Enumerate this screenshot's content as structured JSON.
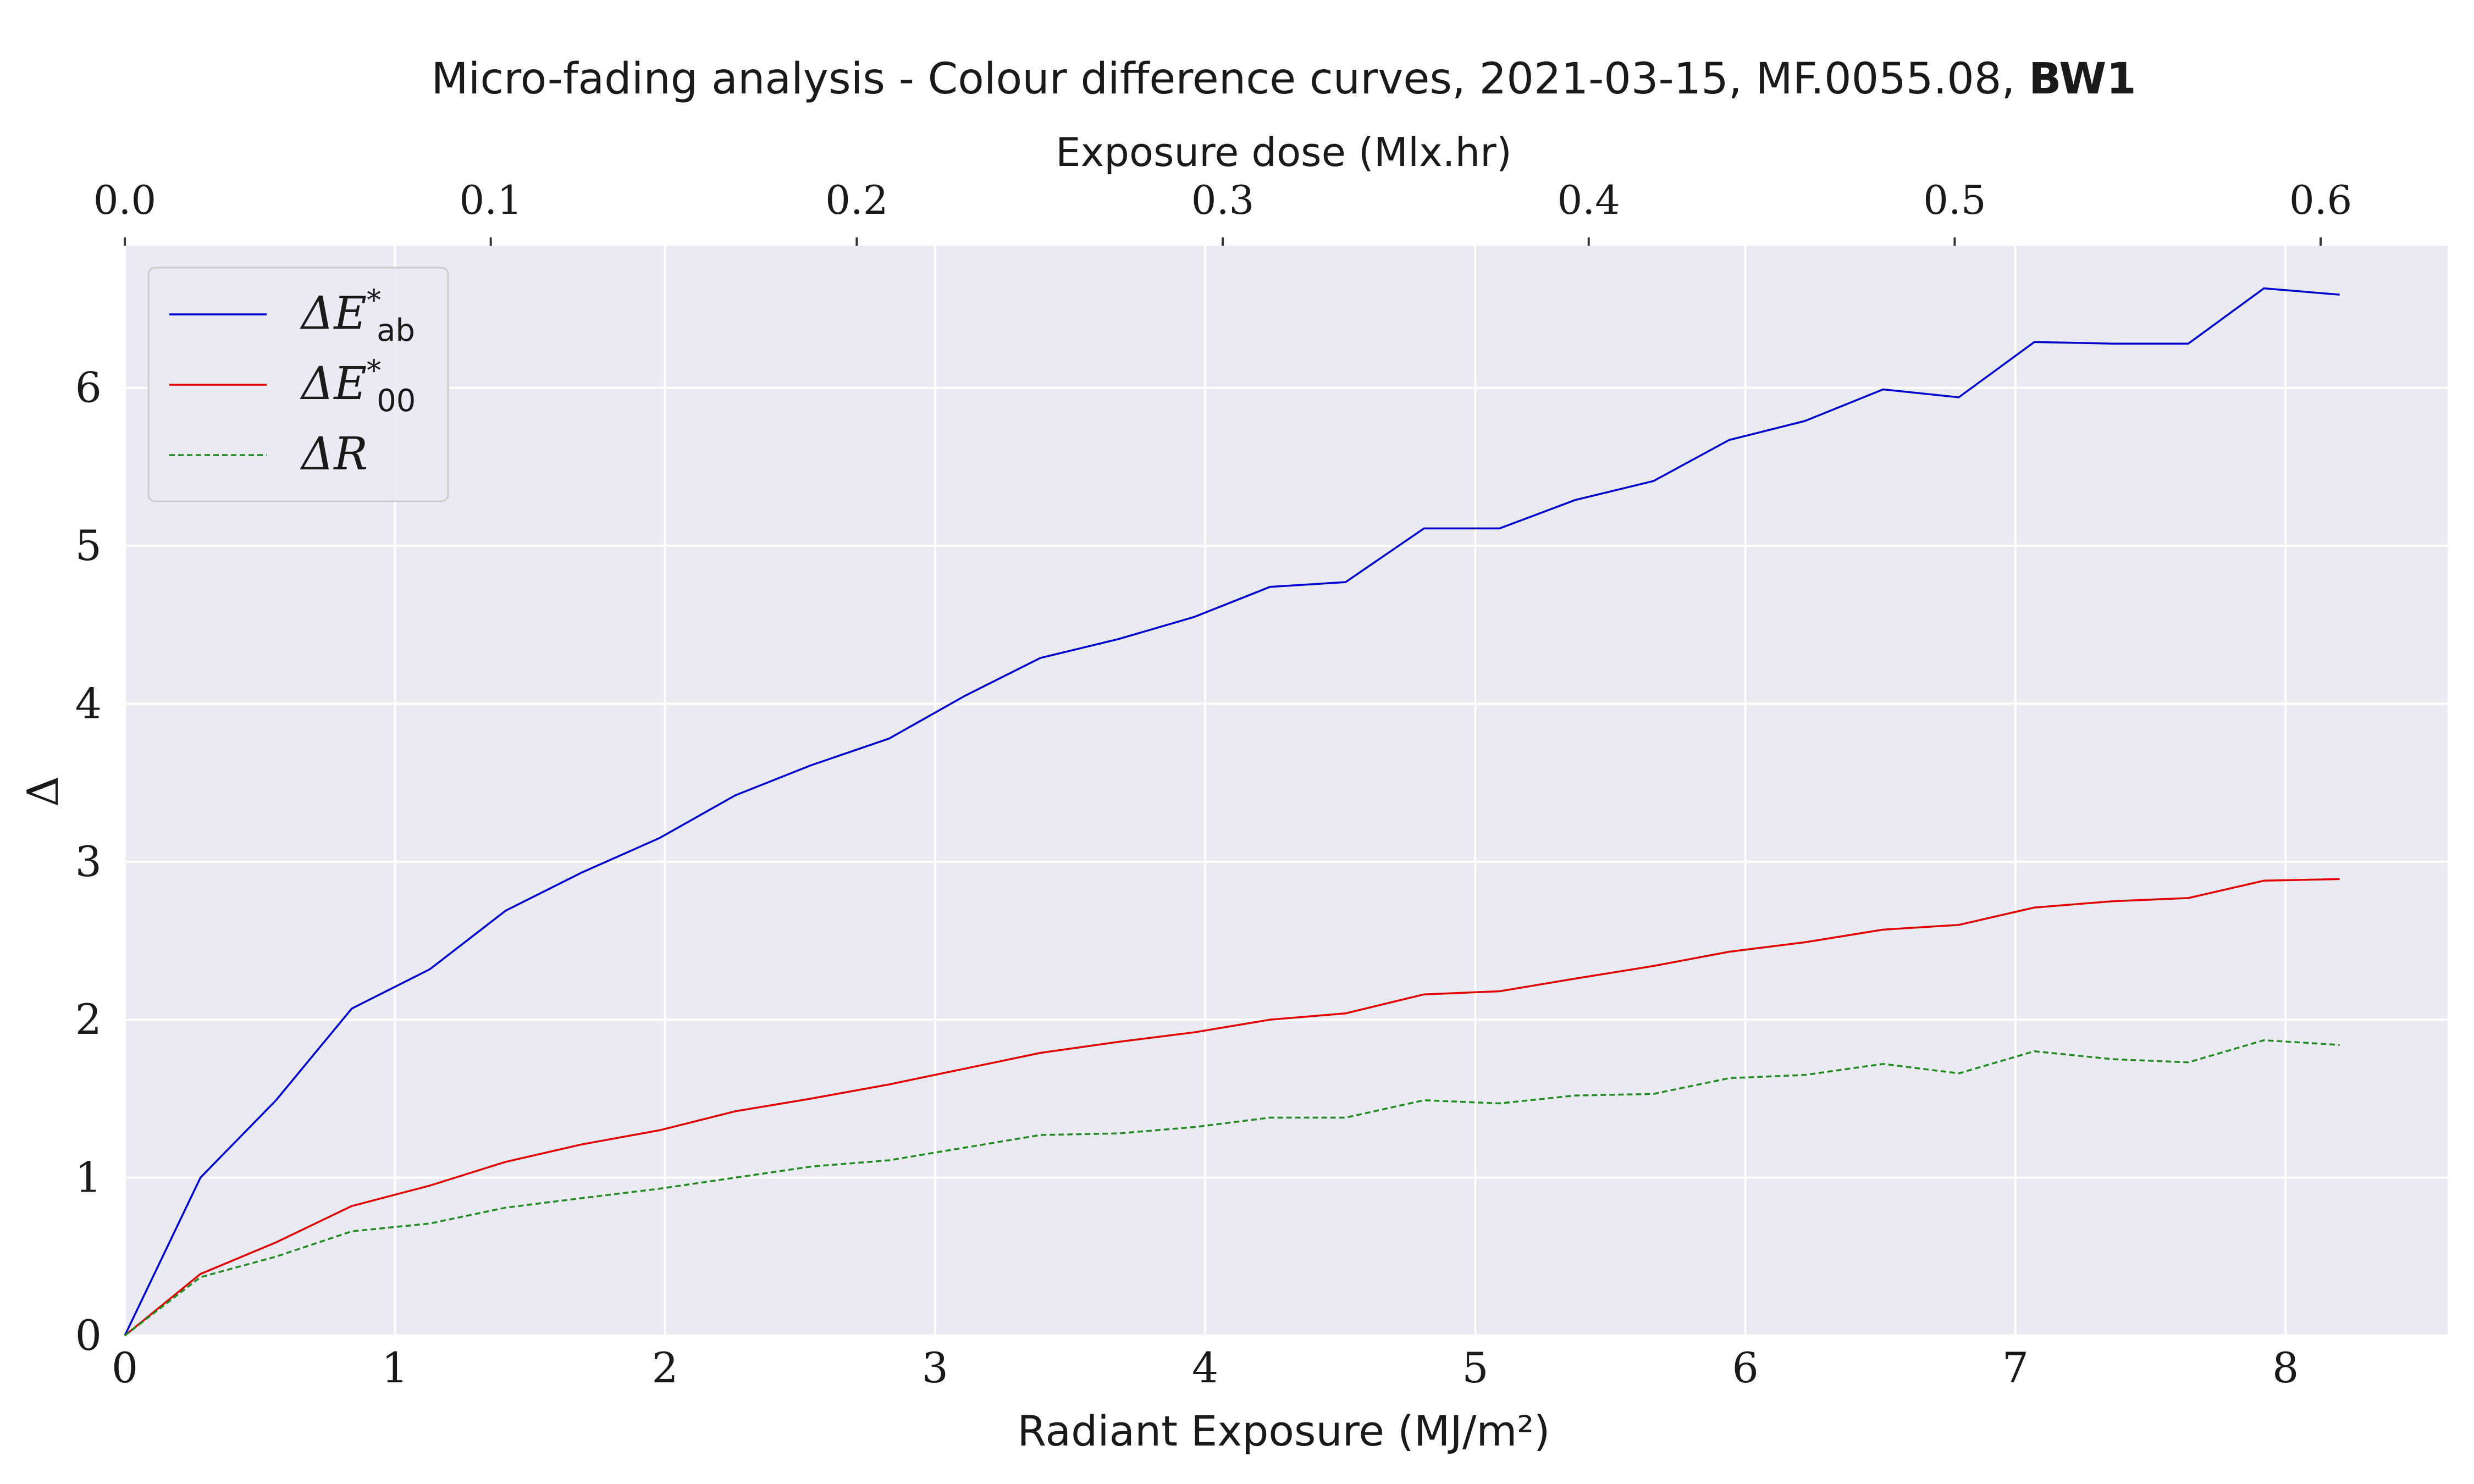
{
  "chart_data": {
    "type": "line",
    "title": "Micro-fading analysis - Colour difference curves, 2021-03-15, MF.0055.08,",
    "title_bold": "BW1",
    "xlabel": "Radiant Exposure (MJ/m²)",
    "ylabel": "Δ",
    "top_xlabel": "Exposure dose (Mlx.hr)",
    "xlim": [
      0,
      8.6
    ],
    "ylim": [
      0,
      6.9
    ],
    "x_ticks": [
      "0",
      "1",
      "2",
      "3",
      "4",
      "5",
      "6",
      "7",
      "8"
    ],
    "y_ticks": [
      "0",
      "1",
      "2",
      "3",
      "4",
      "5",
      "6"
    ],
    "top_x_ticks": [
      "0.0",
      "0.1",
      "0.2",
      "0.3",
      "0.4",
      "0.5",
      "0.6"
    ],
    "top_x_ratio": 13.55,
    "grid": true,
    "legend_position": "top-left",
    "background": "#eaeaf2",
    "x": [
      0,
      0.28,
      0.56,
      0.84,
      1.13,
      1.41,
      1.69,
      1.98,
      2.26,
      2.54,
      2.83,
      3.11,
      3.39,
      3.68,
      3.96,
      4.24,
      4.52,
      4.81,
      5.09,
      5.37,
      5.66,
      5.94,
      6.22,
      6.51,
      6.79,
      7.07,
      7.36,
      7.64,
      7.92,
      8.2
    ],
    "series": [
      {
        "name": "ΔE*ab",
        "legend_main": "ΔE",
        "legend_sup": "*",
        "legend_sub": "ab",
        "color": "#0000cc",
        "dash": "solid",
        "values": [
          0,
          1.0,
          1.49,
          2.07,
          2.32,
          2.69,
          2.93,
          3.15,
          3.42,
          3.61,
          3.78,
          4.05,
          4.29,
          4.41,
          4.55,
          4.74,
          4.77,
          5.11,
          5.11,
          5.29,
          5.41,
          5.67,
          5.79,
          5.99,
          5.94,
          6.29,
          6.28,
          6.28,
          6.63,
          6.59
        ]
      },
      {
        "name": "ΔE*00",
        "legend_main": "ΔE",
        "legend_sup": "*",
        "legend_sub": "00",
        "color": "#e00000",
        "dash": "solid",
        "values": [
          0,
          0.39,
          0.59,
          0.82,
          0.95,
          1.1,
          1.21,
          1.3,
          1.42,
          1.5,
          1.59,
          1.69,
          1.79,
          1.86,
          1.92,
          2.0,
          2.04,
          2.16,
          2.18,
          2.26,
          2.34,
          2.43,
          2.49,
          2.57,
          2.6,
          2.71,
          2.75,
          2.77,
          2.88,
          2.89
        ]
      },
      {
        "name": "ΔR",
        "legend_main": "ΔR",
        "legend_sup": "",
        "legend_sub": "",
        "color": "#228b22",
        "dash": "dashed",
        "values": [
          0,
          0.37,
          0.5,
          0.66,
          0.71,
          0.81,
          0.87,
          0.93,
          1.0,
          1.07,
          1.11,
          1.19,
          1.27,
          1.28,
          1.32,
          1.38,
          1.38,
          1.49,
          1.47,
          1.52,
          1.53,
          1.63,
          1.65,
          1.72,
          1.66,
          1.8,
          1.75,
          1.73,
          1.87,
          1.84
        ]
      }
    ]
  }
}
